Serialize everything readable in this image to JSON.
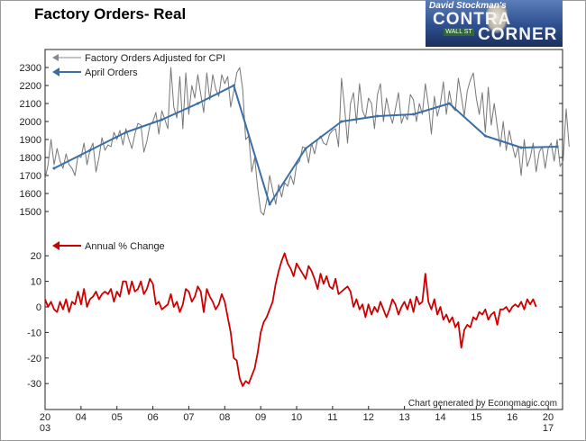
{
  "title": "Factory Orders- Real",
  "logo": {
    "line1": "David Stockman's",
    "line2": "CONTRA",
    "line3": "CORNER",
    "sign": "WALL ST"
  },
  "credit": "Chart generated by Economagic.com",
  "colors": {
    "orders": "#777777",
    "april": "#3a6ea5",
    "annual": "#cc0000"
  },
  "legend": {
    "orders": "Factory Orders Adjusted for CPI",
    "april": "April Orders",
    "annual": "Annual % Change"
  },
  "x_ticks": [
    {
      "year": 2003,
      "top": "20",
      "bottom": "03"
    },
    {
      "year": 2004,
      "top": "04",
      "bottom": ""
    },
    {
      "year": 2005,
      "top": "05",
      "bottom": ""
    },
    {
      "year": 2006,
      "top": "06",
      "bottom": ""
    },
    {
      "year": 2007,
      "top": "07",
      "bottom": ""
    },
    {
      "year": 2008,
      "top": "08",
      "bottom": ""
    },
    {
      "year": 2009,
      "top": "09",
      "bottom": ""
    },
    {
      "year": 2010,
      "top": "10",
      "bottom": ""
    },
    {
      "year": 2011,
      "top": "11",
      "bottom": ""
    },
    {
      "year": 2012,
      "top": "12",
      "bottom": ""
    },
    {
      "year": 2013,
      "top": "13",
      "bottom": ""
    },
    {
      "year": 2014,
      "top": "14",
      "bottom": ""
    },
    {
      "year": 2015,
      "top": "15",
      "bottom": ""
    },
    {
      "year": 2016,
      "top": "16",
      "bottom": ""
    },
    {
      "year": 2017,
      "top": "20",
      "bottom": "17"
    }
  ],
  "chart_data": [
    {
      "type": "line",
      "title": "Factory Orders- Real",
      "ylim": [
        1400,
        2350
      ],
      "y_ticks": [
        1500,
        1600,
        1700,
        1800,
        1900,
        2000,
        2100,
        2200,
        2300
      ],
      "xlim": [
        2003.0,
        2017.4
      ],
      "grid": false,
      "legend_position": "top-left",
      "series": [
        {
          "name": "Factory Orders Adjusted for CPI",
          "x_start": 2003.0,
          "x_step": 0.08333,
          "values": [
            1680,
            1760,
            1900,
            1760,
            1850,
            1780,
            1740,
            1820,
            1760,
            1740,
            1700,
            1810,
            1800,
            1880,
            1760,
            1840,
            1880,
            1720,
            1800,
            1910,
            1840,
            1870,
            1860,
            1940,
            1900,
            1950,
            1870,
            1960,
            1900,
            1850,
            1930,
            1990,
            1980,
            1830,
            1890,
            1980,
            2000,
            2050,
            1930,
            2060,
            2010,
            1960,
            2300,
            2080,
            2020,
            2250,
            1960,
            2270,
            2040,
            2200,
            2130,
            2260,
            2150,
            2050,
            2270,
            2120,
            2260,
            2180,
            2140,
            2260,
            2210,
            2250,
            2080,
            2170,
            2270,
            2300,
            2180,
            1900,
            1920,
            1720,
            1800,
            1630,
            1500,
            1480,
            1560,
            1700,
            1620,
            1540,
            1650,
            1580,
            1660,
            1640,
            1700,
            1650,
            1760,
            1780,
            1860,
            1850,
            1770,
            1880,
            1820,
            1900,
            1920,
            1880,
            1870,
            1930,
            1950,
            1960,
            1860,
            2240,
            2080,
            1880,
            2100,
            2160,
            1990,
            2210,
            2060,
            2020,
            2130,
            2100,
            1960,
            2150,
            2210,
            2000,
            2130,
            2050,
            1990,
            2070,
            2160,
            1990,
            2040,
            2010,
            2150,
            2120,
            2000,
            2100,
            2040,
            2210,
            2090,
            1930,
            2140,
            2030,
            2100,
            2220,
            2040,
            2170,
            2080,
            2060,
            2240,
            2140,
            2030,
            2170,
            2230,
            2270,
            2130,
            2040,
            2160,
            1940,
            2190,
            1980,
            2100,
            1970,
            1860,
            2000,
            1840,
            1950,
            1870,
            1800,
            1860,
            1700,
            1900,
            1750,
            1800,
            1880,
            1720,
            1830,
            1860,
            1740,
            1850,
            1880,
            1780,
            1900,
            1750,
            1780,
            2070,
            1860
          ]
        },
        {
          "name": "April Orders",
          "x": [
            2003.25,
            2004.25,
            2005.25,
            2006.25,
            2007.25,
            2008.25,
            2009.25,
            2010.25,
            2011.25,
            2012.25,
            2013.25,
            2014.25,
            2015.25,
            2016.25,
            2017.25
          ],
          "values": [
            1740,
            1840,
            1940,
            2010,
            2100,
            2200,
            1540,
            1850,
            2000,
            2030,
            2040,
            2100,
            1920,
            1855,
            1860
          ]
        }
      ]
    },
    {
      "type": "line",
      "ylim": [
        -35,
        25
      ],
      "y_ticks": [
        -30,
        -20,
        -10,
        0,
        10,
        20
      ],
      "xlim": [
        2003.0,
        2017.4
      ],
      "grid": false,
      "legend_position": "top-left",
      "series": [
        {
          "name": "Annual % Change",
          "x_start": 2003.0,
          "x_step": 0.08333,
          "values": [
            3,
            0,
            2,
            -1,
            -2,
            2,
            -1,
            3,
            -2,
            2,
            1,
            6,
            1,
            7,
            0,
            3,
            4,
            6,
            3,
            5,
            6,
            5,
            7,
            2,
            6,
            4,
            10,
            10,
            5,
            10,
            6,
            7,
            10,
            5,
            7,
            11,
            9,
            1,
            2,
            -1,
            0,
            1,
            5,
            0,
            2,
            -2,
            1,
            7,
            6,
            2,
            4,
            8,
            6,
            -2,
            7,
            4,
            2,
            -1,
            1,
            5,
            2,
            -4,
            -10,
            -20,
            -21,
            -28,
            -31,
            -29,
            -30,
            -27,
            -24,
            -18,
            -10,
            -6,
            -4,
            -1,
            2,
            9,
            14,
            18,
            21,
            17,
            15,
            12,
            17,
            15,
            13,
            11,
            16,
            14,
            11,
            7,
            13,
            9,
            12,
            8,
            7,
            11,
            5,
            6,
            7,
            8,
            6,
            0,
            3,
            -1,
            1,
            -4,
            1,
            -3,
            0,
            -2,
            2,
            -1,
            -4,
            -1,
            3,
            1,
            -3,
            0,
            2,
            -1,
            3,
            -2,
            4,
            1,
            2,
            13,
            2,
            -1,
            3,
            -3,
            0,
            -5,
            -3,
            -6,
            -4,
            -8,
            -6,
            -16,
            -9,
            -7,
            -8,
            -4,
            -5,
            -2,
            -3,
            -1,
            -5,
            -3,
            -2,
            -7,
            -1,
            -1,
            0,
            -2,
            0,
            1,
            0,
            2,
            -1,
            3,
            1,
            3,
            0
          ]
        }
      ]
    }
  ]
}
